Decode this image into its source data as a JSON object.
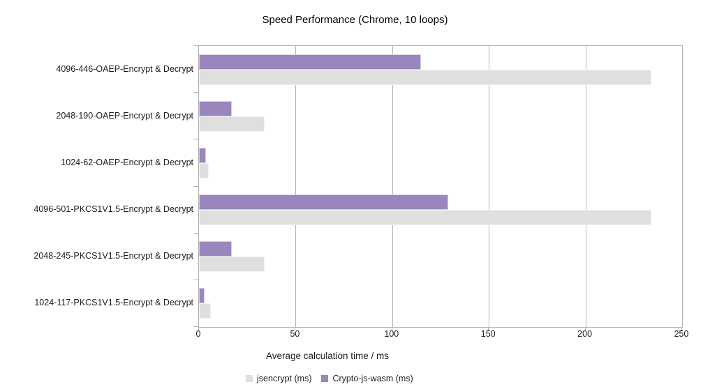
{
  "title": "Speed Performance (Chrome, 10 loops)",
  "chart_data": {
    "type": "bar",
    "orientation": "horizontal",
    "title": "Speed Performance (Chrome, 10 loops)",
    "xlabel": "Average calculation time / ms",
    "ylabel": "",
    "xlim": [
      0,
      250
    ],
    "x_ticks": [
      0,
      50,
      100,
      150,
      200,
      250
    ],
    "grid": true,
    "legend_position": "bottom",
    "categories": [
      "4096-446-OAEP-Encrypt & Decrypt",
      "2048-190-OAEP-Encrypt & Decrypt",
      "1024-62-OAEP-Encrypt & Decrypt",
      "4096-501-PKCS1V1.5-Encrypt & Decrypt",
      "2048-245-PKCS1V1.5-Encrypt & Decrypt",
      "1024-117-PKCS1V1.5-Encrypt & Decrypt"
    ],
    "series": [
      {
        "name": "jsencrypt (ms)",
        "color": "#dfdfdf",
        "values": [
          234,
          34,
          5,
          234,
          34,
          6
        ]
      },
      {
        "name": "Crypto-js-wasm (ms)",
        "color": "#9a85bd",
        "values": [
          115,
          17,
          3.5,
          129,
          17,
          3
        ]
      }
    ],
    "colors": {
      "axis": "#b0b0b0",
      "gridline": "#b5b5b5",
      "text": "#1c1c1c"
    }
  }
}
